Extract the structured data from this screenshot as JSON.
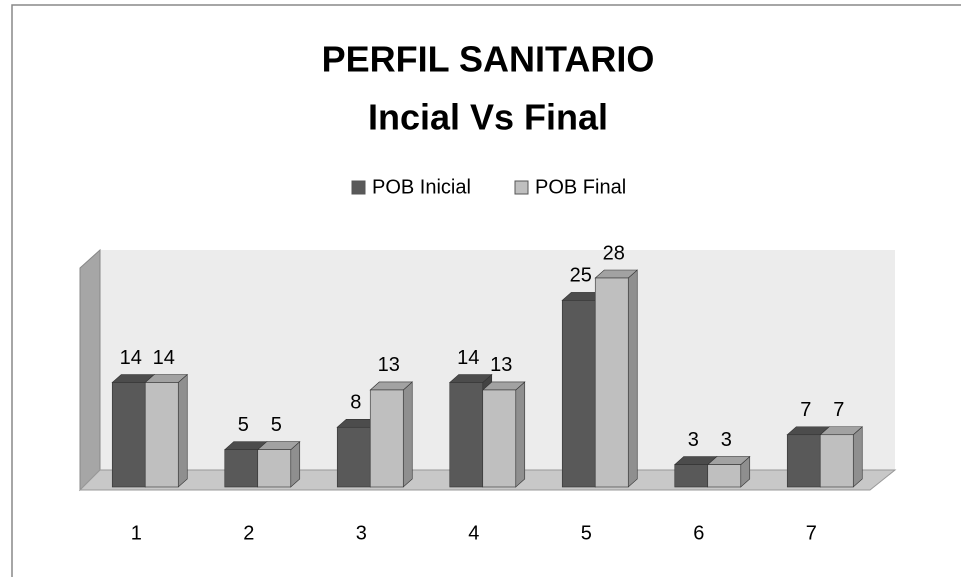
{
  "chart_data": {
    "type": "bar3d",
    "title": "PERFIL SANITARIO",
    "subtitle": "Incial Vs Final",
    "categories": [
      "1",
      "2",
      "3",
      "4",
      "5",
      "6",
      "7"
    ],
    "series": [
      {
        "name": "POB Inicial",
        "color": "#595959",
        "values": [
          14,
          5,
          8,
          14,
          25,
          3,
          7
        ]
      },
      {
        "name": "POB Final",
        "color": "#bfbfbf",
        "values": [
          14,
          5,
          13,
          13,
          28,
          3,
          7
        ]
      }
    ],
    "legend": "top"
  }
}
